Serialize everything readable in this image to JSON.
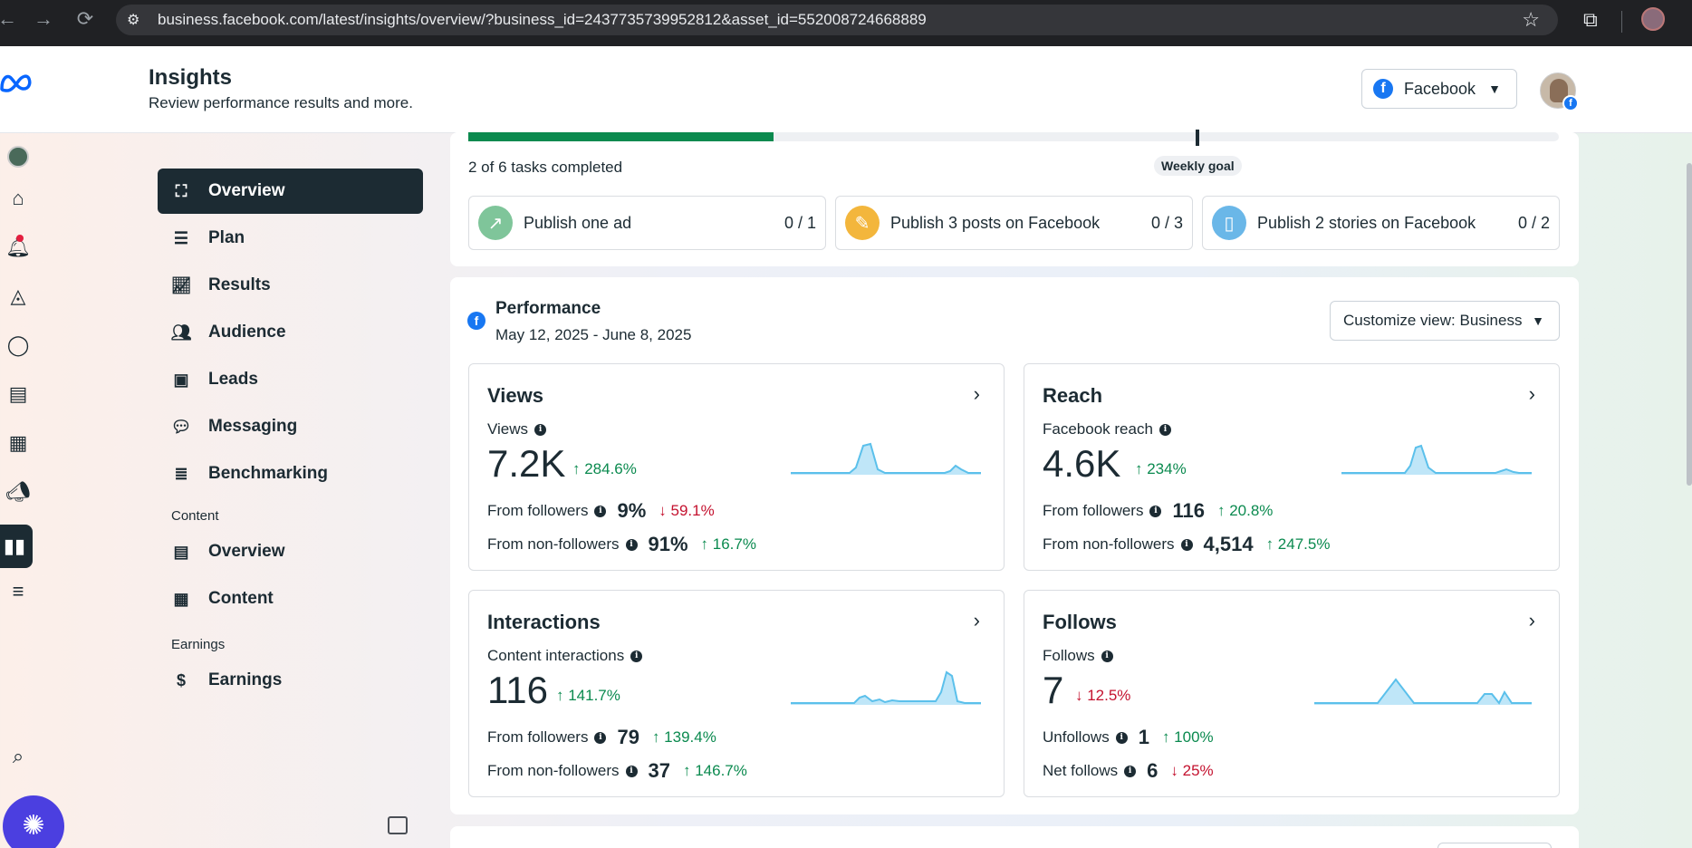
{
  "browser": {
    "url": "business.facebook.com/latest/insights/overview/?business_id=2437735739952812&asset_id=552008724668889"
  },
  "header": {
    "title": "Insights",
    "subtitle": "Review performance results and more.",
    "platform_select": "Facebook"
  },
  "nav": {
    "items": [
      {
        "label": "Overview",
        "icon": "overview-icon"
      },
      {
        "label": "Plan",
        "icon": "list-icon"
      },
      {
        "label": "Results",
        "icon": "trend-chart-icon"
      },
      {
        "label": "Audience",
        "icon": "people-icon"
      },
      {
        "label": "Leads",
        "icon": "contact-card-icon"
      },
      {
        "label": "Messaging",
        "icon": "chat-bubbles-icon"
      },
      {
        "label": "Benchmarking",
        "icon": "list-search-icon"
      }
    ],
    "content_section": "Content",
    "content_items": [
      {
        "label": "Overview",
        "icon": "newspaper-icon"
      },
      {
        "label": "Content",
        "icon": "table-icon"
      }
    ],
    "earnings_section": "Earnings",
    "earnings_items": [
      {
        "label": "Earnings",
        "icon": "dollar-circle-icon"
      }
    ]
  },
  "tasks": {
    "completed_text": "2 of 6 tasks completed",
    "progress_fraction": 0.28,
    "goal_label": "Weekly goal",
    "items": [
      {
        "label": "Publish one ad",
        "count": "0 / 1"
      },
      {
        "label": "Publish 3 posts on Facebook",
        "count": "0 / 3"
      },
      {
        "label": "Publish 2 stories on Facebook",
        "count": "0 / 2"
      }
    ]
  },
  "performance": {
    "title": "Performance",
    "dates": "May 12, 2025 - June 8, 2025",
    "customize": "Customize view: Business",
    "cards": {
      "views": {
        "title": "Views",
        "sublabel": "Views",
        "value": "7.2K",
        "delta": "↑ 284.6%",
        "rows": [
          {
            "label": "From followers",
            "value": "9%",
            "delta": "↓ 59.1%"
          },
          {
            "label": "From non-followers",
            "value": "91%",
            "delta": "↑ 16.7%"
          }
        ]
      },
      "reach": {
        "title": "Reach",
        "sublabel": "Facebook reach",
        "value": "4.6K",
        "delta": "↑ 234%",
        "rows": [
          {
            "label": "From followers",
            "value": "116",
            "delta": "↑ 20.8%"
          },
          {
            "label": "From non-followers",
            "value": "4,514",
            "delta": "↑ 247.5%"
          }
        ]
      },
      "interactions": {
        "title": "Interactions",
        "sublabel": "Content interactions",
        "value": "116",
        "delta": "↑ 141.7%",
        "rows": [
          {
            "label": "From followers",
            "value": "79",
            "delta": "↑ 139.4%"
          },
          {
            "label": "From non-followers",
            "value": "37",
            "delta": "↑ 146.7%"
          }
        ]
      },
      "follows": {
        "title": "Follows",
        "sublabel": "Follows",
        "value": "7",
        "delta": "↓ 12.5%",
        "rows": [
          {
            "label": "Unfollows",
            "value": "1",
            "delta": "↑ 100%"
          },
          {
            "label": "Net follows",
            "value": "6",
            "delta": "↓ 25%"
          }
        ]
      }
    }
  },
  "colors": {
    "accent": "#1c2b33",
    "progress": "#0b8a4f",
    "positive": "#0b8a4f",
    "negative": "#c4122f",
    "sparkline": "#5bc0eb",
    "facebook": "#1877f2"
  }
}
